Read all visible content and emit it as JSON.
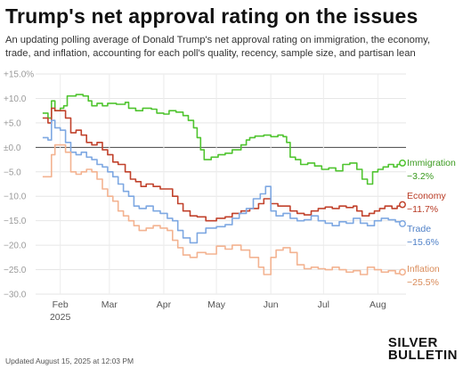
{
  "header": {
    "title": "Trump's net approval rating on the issues",
    "subtitle": "An updating polling average of Donald Trump's net approval rating on immigration, the economy, trade, and inflation, accounting for each poll's quality, recency, sample size, and partisan lean"
  },
  "footer": {
    "updated": "Updated August 15, 2025 at 12:03 PM",
    "brand_line1": "SILVER",
    "brand_line2": "BULLETIN"
  },
  "chart_data": {
    "type": "line",
    "title": "Trump's net approval rating on the issues",
    "x_axis": {
      "type": "date",
      "range": [
        "2025-01-20",
        "2025-08-15"
      ],
      "ticks": [
        {
          "date": "2025-02-01",
          "label": "Feb",
          "sublabel": "2025"
        },
        {
          "date": "2025-03-01",
          "label": "Mar",
          "sublabel": ""
        },
        {
          "date": "2025-04-01",
          "label": "Apr",
          "sublabel": ""
        },
        {
          "date": "2025-05-01",
          "label": "May",
          "sublabel": ""
        },
        {
          "date": "2025-06-01",
          "label": "Jun",
          "sublabel": ""
        },
        {
          "date": "2025-07-01",
          "label": "Jul",
          "sublabel": ""
        },
        {
          "date": "2025-08-01",
          "label": "Aug",
          "sublabel": ""
        }
      ]
    },
    "y_axis": {
      "ylim": [
        -30,
        15
      ],
      "ticks": [
        15,
        10,
        5,
        0,
        -5,
        -10,
        -15,
        -20,
        -25,
        -30
      ],
      "tick_labels": [
        "+15.0%",
        "+10.0",
        "+5.0",
        "±0.0",
        "−5.0",
        "−10.0",
        "−15.0",
        "−20.0",
        "−25.0",
        "−30.0"
      ],
      "gridlines": true
    },
    "series": [
      {
        "name": "Immigration",
        "value_label": "−3.2%",
        "color": "#4fc42f",
        "label_color": "#3a9a1f",
        "points": [
          [
            "2025-01-22",
            7
          ],
          [
            "2025-01-25",
            6
          ],
          [
            "2025-01-27",
            9.5
          ],
          [
            "2025-01-29",
            7.5
          ],
          [
            "2025-02-01",
            8
          ],
          [
            "2025-02-03",
            8.5
          ],
          [
            "2025-02-05",
            10.5
          ],
          [
            "2025-02-10",
            10.8
          ],
          [
            "2025-02-14",
            10.5
          ],
          [
            "2025-02-17",
            9.5
          ],
          [
            "2025-02-19",
            8.5
          ],
          [
            "2025-02-22",
            9
          ],
          [
            "2025-02-25",
            8.5
          ],
          [
            "2025-02-28",
            9
          ],
          [
            "2025-03-05",
            8.8
          ],
          [
            "2025-03-10",
            9.2
          ],
          [
            "2025-03-12",
            8
          ],
          [
            "2025-03-16",
            7.5
          ],
          [
            "2025-03-20",
            8
          ],
          [
            "2025-03-25",
            7.8
          ],
          [
            "2025-03-28",
            7
          ],
          [
            "2025-04-01",
            6.8
          ],
          [
            "2025-04-04",
            7.5
          ],
          [
            "2025-04-08",
            7.2
          ],
          [
            "2025-04-12",
            6.5
          ],
          [
            "2025-04-15",
            5.5
          ],
          [
            "2025-04-18",
            4
          ],
          [
            "2025-04-20",
            2
          ],
          [
            "2025-04-22",
            -0.5
          ],
          [
            "2025-04-24",
            -2.5
          ],
          [
            "2025-04-28",
            -2
          ],
          [
            "2025-05-02",
            -1.5
          ],
          [
            "2025-05-06",
            -1.2
          ],
          [
            "2025-05-10",
            -0.5
          ],
          [
            "2025-05-15",
            0.5
          ],
          [
            "2025-05-18",
            1.5
          ],
          [
            "2025-05-20",
            2
          ],
          [
            "2025-05-23",
            2.3
          ],
          [
            "2025-05-28",
            2.5
          ],
          [
            "2025-06-01",
            2.2
          ],
          [
            "2025-06-05",
            2.5
          ],
          [
            "2025-06-08",
            2.2
          ],
          [
            "2025-06-10",
            1
          ],
          [
            "2025-06-12",
            -2
          ],
          [
            "2025-06-15",
            -2.5
          ],
          [
            "2025-06-18",
            -3.5
          ],
          [
            "2025-06-22",
            -3.2
          ],
          [
            "2025-06-26",
            -3.8
          ],
          [
            "2025-06-30",
            -4.5
          ],
          [
            "2025-07-04",
            -4.2
          ],
          [
            "2025-07-08",
            -4.8
          ],
          [
            "2025-07-12",
            -3.5
          ],
          [
            "2025-07-16",
            -3.2
          ],
          [
            "2025-07-20",
            -4.5
          ],
          [
            "2025-07-23",
            -6.5
          ],
          [
            "2025-07-26",
            -7.5
          ],
          [
            "2025-07-29",
            -5
          ],
          [
            "2025-08-01",
            -4.5
          ],
          [
            "2025-08-04",
            -4
          ],
          [
            "2025-08-07",
            -3.5
          ],
          [
            "2025-08-10",
            -4
          ],
          [
            "2025-08-12",
            -3.5
          ],
          [
            "2025-08-15",
            -3.2
          ]
        ]
      },
      {
        "name": "Economy",
        "value_label": "−11.7%",
        "color": "#c1422c",
        "label_color": "#b83a24",
        "points": [
          [
            "2025-01-22",
            6
          ],
          [
            "2025-01-25",
            5
          ],
          [
            "2025-01-27",
            8
          ],
          [
            "2025-01-29",
            7.5
          ],
          [
            "2025-02-01",
            7.5
          ],
          [
            "2025-02-04",
            6
          ],
          [
            "2025-02-07",
            3
          ],
          [
            "2025-02-10",
            3.5
          ],
          [
            "2025-02-13",
            2.5
          ],
          [
            "2025-02-16",
            1
          ],
          [
            "2025-02-19",
            0.5
          ],
          [
            "2025-02-22",
            1
          ],
          [
            "2025-02-25",
            -0.5
          ],
          [
            "2025-02-28",
            -1.5
          ],
          [
            "2025-03-03",
            -3
          ],
          [
            "2025-03-06",
            -3.5
          ],
          [
            "2025-03-10",
            -5
          ],
          [
            "2025-03-13",
            -6.5
          ],
          [
            "2025-03-16",
            -7
          ],
          [
            "2025-03-19",
            -8
          ],
          [
            "2025-03-22",
            -7.5
          ],
          [
            "2025-03-26",
            -8
          ],
          [
            "2025-03-30",
            -8.5
          ],
          [
            "2025-04-03",
            -8.5
          ],
          [
            "2025-04-06",
            -10
          ],
          [
            "2025-04-09",
            -11.5
          ],
          [
            "2025-04-12",
            -13
          ],
          [
            "2025-04-16",
            -14
          ],
          [
            "2025-04-20",
            -14.2
          ],
          [
            "2025-04-25",
            -15
          ],
          [
            "2025-05-01",
            -14.5
          ],
          [
            "2025-05-06",
            -14.2
          ],
          [
            "2025-05-10",
            -13.5
          ],
          [
            "2025-05-15",
            -13
          ],
          [
            "2025-05-20",
            -12.5
          ],
          [
            "2025-05-25",
            -11.5
          ],
          [
            "2025-05-28",
            -10.5
          ],
          [
            "2025-06-01",
            -11.5
          ],
          [
            "2025-06-05",
            -12
          ],
          [
            "2025-06-08",
            -12
          ],
          [
            "2025-06-12",
            -13
          ],
          [
            "2025-06-16",
            -13.5
          ],
          [
            "2025-06-20",
            -13.8
          ],
          [
            "2025-06-24",
            -13
          ],
          [
            "2025-06-28",
            -12.5
          ],
          [
            "2025-07-02",
            -12.2
          ],
          [
            "2025-07-06",
            -12.5
          ],
          [
            "2025-07-10",
            -12
          ],
          [
            "2025-07-14",
            -12.3
          ],
          [
            "2025-07-18",
            -12
          ],
          [
            "2025-07-20",
            -13
          ],
          [
            "2025-07-23",
            -14
          ],
          [
            "2025-07-27",
            -13.5
          ],
          [
            "2025-07-30",
            -13
          ],
          [
            "2025-08-02",
            -12.5
          ],
          [
            "2025-08-05",
            -12
          ],
          [
            "2025-08-09",
            -12.5
          ],
          [
            "2025-08-12",
            -12
          ],
          [
            "2025-08-15",
            -11.7
          ]
        ]
      },
      {
        "name": "Trade",
        "value_label": "−15.6%",
        "color": "#7ea8e2",
        "label_color": "#4f80c7",
        "points": [
          [
            "2025-01-22",
            2
          ],
          [
            "2025-01-25",
            1.5
          ],
          [
            "2025-01-27",
            5.5
          ],
          [
            "2025-01-29",
            4
          ],
          [
            "2025-02-01",
            3.5
          ],
          [
            "2025-02-04",
            1
          ],
          [
            "2025-02-07",
            -1
          ],
          [
            "2025-02-10",
            -1.5
          ],
          [
            "2025-02-13",
            -1
          ],
          [
            "2025-02-16",
            -2
          ],
          [
            "2025-02-19",
            -2.5
          ],
          [
            "2025-02-22",
            -3.5
          ],
          [
            "2025-02-25",
            -4
          ],
          [
            "2025-02-28",
            -5
          ],
          [
            "2025-03-03",
            -6
          ],
          [
            "2025-03-06",
            -7.5
          ],
          [
            "2025-03-09",
            -9
          ],
          [
            "2025-03-12",
            -10
          ],
          [
            "2025-03-15",
            -12
          ],
          [
            "2025-03-18",
            -12.5
          ],
          [
            "2025-03-22",
            -12
          ],
          [
            "2025-03-26",
            -13
          ],
          [
            "2025-03-30",
            -13.5
          ],
          [
            "2025-04-03",
            -14.5
          ],
          [
            "2025-04-06",
            -15
          ],
          [
            "2025-04-09",
            -17
          ],
          [
            "2025-04-12",
            -18.5
          ],
          [
            "2025-04-16",
            -19.5
          ],
          [
            "2025-04-20",
            -17.5
          ],
          [
            "2025-04-25",
            -16.5
          ],
          [
            "2025-05-01",
            -16.2
          ],
          [
            "2025-05-06",
            -15.8
          ],
          [
            "2025-05-10",
            -14.5
          ],
          [
            "2025-05-14",
            -13.5
          ],
          [
            "2025-05-18",
            -12.5
          ],
          [
            "2025-05-22",
            -10.5
          ],
          [
            "2025-05-26",
            -9.5
          ],
          [
            "2025-05-29",
            -8
          ],
          [
            "2025-06-01",
            -13
          ],
          [
            "2025-06-04",
            -14
          ],
          [
            "2025-06-08",
            -13.5
          ],
          [
            "2025-06-12",
            -14.5
          ],
          [
            "2025-06-16",
            -15
          ],
          [
            "2025-06-20",
            -14.8
          ],
          [
            "2025-06-24",
            -14
          ],
          [
            "2025-06-28",
            -15
          ],
          [
            "2025-07-02",
            -15.5
          ],
          [
            "2025-07-06",
            -16
          ],
          [
            "2025-07-10",
            -15.2
          ],
          [
            "2025-07-14",
            -15.5
          ],
          [
            "2025-07-18",
            -14.5
          ],
          [
            "2025-07-22",
            -15.5
          ],
          [
            "2025-07-26",
            -16
          ],
          [
            "2025-07-30",
            -15
          ],
          [
            "2025-08-03",
            -14.5
          ],
          [
            "2025-08-07",
            -14.8
          ],
          [
            "2025-08-11",
            -15.2
          ],
          [
            "2025-08-15",
            -15.6
          ]
        ]
      },
      {
        "name": "Inflation",
        "value_label": "−25.5%",
        "color": "#f3b391",
        "label_color": "#d98a58",
        "points": [
          [
            "2025-01-22",
            -6
          ],
          [
            "2025-01-25",
            -6
          ],
          [
            "2025-01-27",
            -1.5
          ],
          [
            "2025-01-29",
            0.5
          ],
          [
            "2025-02-01",
            0.5
          ],
          [
            "2025-02-04",
            -1
          ],
          [
            "2025-02-07",
            -5
          ],
          [
            "2025-02-10",
            -5.5
          ],
          [
            "2025-02-13",
            -5
          ],
          [
            "2025-02-16",
            -4.5
          ],
          [
            "2025-02-19",
            -5
          ],
          [
            "2025-02-22",
            -6.5
          ],
          [
            "2025-02-25",
            -8.5
          ],
          [
            "2025-02-28",
            -10
          ],
          [
            "2025-03-03",
            -11
          ],
          [
            "2025-03-06",
            -13
          ],
          [
            "2025-03-09",
            -14
          ],
          [
            "2025-03-12",
            -15
          ],
          [
            "2025-03-15",
            -16
          ],
          [
            "2025-03-18",
            -17
          ],
          [
            "2025-03-22",
            -16.5
          ],
          [
            "2025-03-26",
            -16
          ],
          [
            "2025-03-30",
            -16.5
          ],
          [
            "2025-04-03",
            -17
          ],
          [
            "2025-04-06",
            -19
          ],
          [
            "2025-04-09",
            -20.5
          ],
          [
            "2025-04-12",
            -22
          ],
          [
            "2025-04-16",
            -22.5
          ],
          [
            "2025-04-20",
            -21.5
          ],
          [
            "2025-04-25",
            -21.8
          ],
          [
            "2025-05-01",
            -20.2
          ],
          [
            "2025-05-06",
            -20.8
          ],
          [
            "2025-05-10",
            -20
          ],
          [
            "2025-05-15",
            -21
          ],
          [
            "2025-05-20",
            -22.5
          ],
          [
            "2025-05-25",
            -24.5
          ],
          [
            "2025-05-28",
            -26
          ],
          [
            "2025-06-01",
            -22.5
          ],
          [
            "2025-06-04",
            -21
          ],
          [
            "2025-06-08",
            -20.5
          ],
          [
            "2025-06-12",
            -21.5
          ],
          [
            "2025-06-16",
            -24
          ],
          [
            "2025-06-20",
            -24.8
          ],
          [
            "2025-06-24",
            -24.5
          ],
          [
            "2025-06-28",
            -24.8
          ],
          [
            "2025-07-02",
            -25
          ],
          [
            "2025-07-06",
            -24.5
          ],
          [
            "2025-07-10",
            -25
          ],
          [
            "2025-07-14",
            -25.5
          ],
          [
            "2025-07-18",
            -25.2
          ],
          [
            "2025-07-22",
            -26
          ],
          [
            "2025-07-26",
            -24.5
          ],
          [
            "2025-07-30",
            -25
          ],
          [
            "2025-08-03",
            -25.5
          ],
          [
            "2025-08-07",
            -25.2
          ],
          [
            "2025-08-11",
            -25.8
          ],
          [
            "2025-08-15",
            -25.5
          ]
        ]
      }
    ]
  }
}
